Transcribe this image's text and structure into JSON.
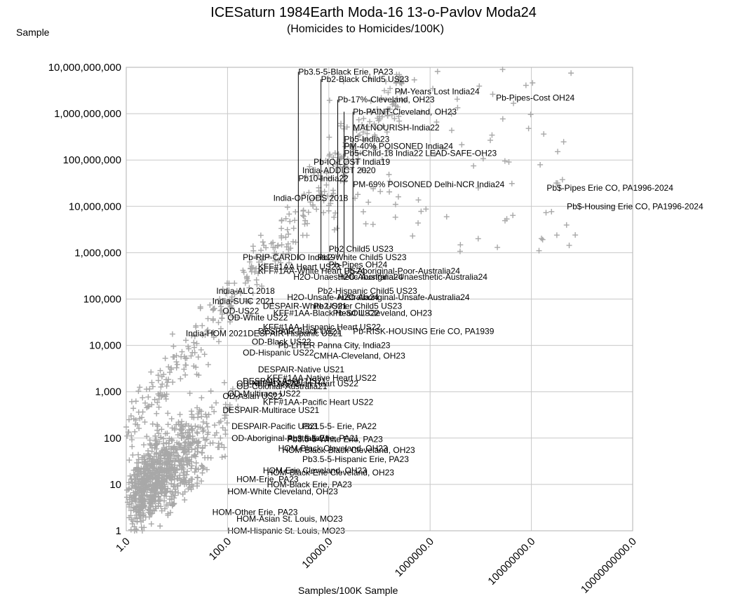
{
  "chart_data": {
    "type": "scatter",
    "title": "ICESaturn 1984Earth Moda-16 13-o-Pavlov Moda24",
    "subtitle": "(Homicides to Homicides/100K)",
    "ylabel": "Sample",
    "xlabel": "Samples/100K Sample",
    "x_scale": "log",
    "y_scale": "log",
    "xlim": [
      1,
      10000000000
    ],
    "ylim": [
      1,
      10000000000
    ],
    "grid": true,
    "marker": "plus",
    "marker_color": "#a8a8a8",
    "y_ticks": [
      "1",
      "10",
      "100",
      "1,000",
      "10,000",
      "100,000",
      "1,000,000",
      "10,000,000",
      "100,000,000",
      "1,000,000,000",
      "10,000,000,000"
    ],
    "x_ticks": [
      "1.0",
      "100.0",
      "10000.0",
      "1000000.0",
      "100000000.0",
      "10000000000.0"
    ],
    "annotations": [
      {
        "text": "Pb3.5-5-Black Erie, PA23",
        "x": 2500,
        "y": 8000000000
      },
      {
        "text": "Pb2-Black Child5 US23",
        "x": 7000,
        "y": 5500000000
      },
      {
        "text": "PM-Years Lost India24",
        "x": 200000,
        "y": 3000000000
      },
      {
        "text": "Pb-Pipes-Cost OH24",
        "x": 20000000,
        "y": 2200000000
      },
      {
        "text": "Pb-17%-Cleveland, OH23",
        "x": 15000,
        "y": 2000000000
      },
      {
        "text": "Pb-PAINT-Cleveland, OH23",
        "x": 30000,
        "y": 1100000000
      },
      {
        "text": "MALNOURISH-India22",
        "x": 30000,
        "y": 500000000
      },
      {
        "text": "Pb5-India23",
        "x": 20000,
        "y": 280000000
      },
      {
        "text": "PM-40% POISONED India24",
        "x": 20000,
        "y": 200000000
      },
      {
        "text": "Pb5-Child-18 India22",
        "x": 20000,
        "y": 140000000
      },
      {
        "text": "LEAD-SAFE-OH23",
        "x": 800000,
        "y": 140000000
      },
      {
        "text": "Pb-IQ-LOST India19",
        "x": 5000,
        "y": 90000000
      },
      {
        "text": "India-ADDICT 2020",
        "x": 3000,
        "y": 60000000
      },
      {
        "text": "Pb10-India22",
        "x": 2500,
        "y": 40000000
      },
      {
        "text": "PM-69% POISONED Delhi-NCR India24",
        "x": 30000,
        "y": 30000000
      },
      {
        "text": "Pb$-Pipes Erie CO, PA1996-2024",
        "x": 200000000,
        "y": 25000000
      },
      {
        "text": "India-OPIODS 2018",
        "x": 800,
        "y": 15000000
      },
      {
        "text": "Pb$-Housing Erie CO, PA1996-2024",
        "x": 500000000,
        "y": 10000000
      },
      {
        "text": "Pb2 Child5 US23",
        "x": 10000,
        "y": 1200000
      },
      {
        "text": "Pb-RIP-CARDIO India19",
        "x": 200,
        "y": 800000
      },
      {
        "text": "Pb2-White Child5 US23",
        "x": 6000,
        "y": 800000
      },
      {
        "text": "Pb-Pipes OH24",
        "x": 10000,
        "y": 550000
      },
      {
        "text": "KFF#1AA Heart US23",
        "x": 400,
        "y": 500000
      },
      {
        "text": "KFF#1AA-White Heart US24",
        "x": 400,
        "y": 400000
      },
      {
        "text": "Pb-Aboriginal-Poor-Australia24",
        "x": 20000,
        "y": 400000
      },
      {
        "text": "H2O-Unaesthetic-Australia24",
        "x": 2000,
        "y": 300000
      },
      {
        "text": "H2O-Aboriginal-Unaesthetic-Australia24",
        "x": 15000,
        "y": 300000
      },
      {
        "text": "India-ALC 2018",
        "x": 60,
        "y": 150000
      },
      {
        "text": "Pb2-Hispanic Child5 US23",
        "x": 6000,
        "y": 150000
      },
      {
        "text": "H2O-Unsafe-Australia24",
        "x": 1500,
        "y": 110000
      },
      {
        "text": "H2O-Aboriginal-Unsafe-Australia24",
        "x": 15000,
        "y": 110000
      },
      {
        "text": "India-SUIC 2021",
        "x": 50,
        "y": 90000
      },
      {
        "text": "DESPAIR-White US21",
        "x": 500,
        "y": 70000
      },
      {
        "text": "Pb2-Other Child5 US23",
        "x": 5000,
        "y": 70000
      },
      {
        "text": "OD-US22",
        "x": 80,
        "y": 55000
      },
      {
        "text": "KFF#1AA-Black Heart US22",
        "x": 800,
        "y": 50000
      },
      {
        "text": "Pb-SOIL-Cleveland, OH23",
        "x": 12000,
        "y": 50000
      },
      {
        "text": "OD-White US22",
        "x": 100,
        "y": 40000
      },
      {
        "text": "KFF#1AA-Hispanic Heart US22",
        "x": 500,
        "y": 25000
      },
      {
        "text": "DESPAIR-Black US21",
        "x": 400,
        "y": 20000
      },
      {
        "text": "India-HOM 2021",
        "x": 15,
        "y": 18000
      },
      {
        "text": "DESPAIR-Hispanic US21",
        "x": 250,
        "y": 18000
      },
      {
        "text": "Pb-RISK-HOUSING Erie CO, PA1939",
        "x": 30000,
        "y": 20000
      },
      {
        "text": "OD-Black US22",
        "x": 300,
        "y": 12000
      },
      {
        "text": "Pb-LITER Panna City, India23",
        "x": 1000,
        "y": 10000
      },
      {
        "text": "OD-Hispanic US22",
        "x": 200,
        "y": 7000
      },
      {
        "text": "CMHA-Cleveland, OH23",
        "x": 5000,
        "y": 6000
      },
      {
        "text": "DESPAIR-Native US21",
        "x": 400,
        "y": 3000
      },
      {
        "text": "KFF#1AA-Native Heart US22",
        "x": 600,
        "y": 2000
      },
      {
        "text": "DESPAIR-Asian US21",
        "x": 200,
        "y": 1700
      },
      {
        "text": "OD-Native US22",
        "x": 150,
        "y": 1500
      },
      {
        "text": "KFF#1AA-Asian Heart US22",
        "x": 300,
        "y": 1500
      },
      {
        "text": "OD-Colonial-Australia21",
        "x": 150,
        "y": 1300
      },
      {
        "text": "OD-Multirace US22",
        "x": 100,
        "y": 900
      },
      {
        "text": "OD-Asian US22",
        "x": 80,
        "y": 800
      },
      {
        "text": "KFF#1AA-Pacific Heart US22",
        "x": 500,
        "y": 600
      },
      {
        "text": "DESPAIR-Multirace US21",
        "x": 80,
        "y": 400
      },
      {
        "text": "DESPAIR-Pacific US21",
        "x": 120,
        "y": 180
      },
      {
        "text": "Pb3.5-5- Erie, PA22",
        "x": 3000,
        "y": 180
      },
      {
        "text": "OD-Aboriginal-Australia21",
        "x": 120,
        "y": 100
      },
      {
        "text": "Pb3.5-5-Erie, PA21",
        "x": 1500,
        "y": 100
      },
      {
        "text": "Pb3.5-5-White Erie, PA23",
        "x": 1500,
        "y": 95
      },
      {
        "text": "HOM-Black Cleveland, OH23",
        "x": 1000,
        "y": 60
      },
      {
        "text": "HOM-Black-Black Cleveland, OH23",
        "x": 1200,
        "y": 55
      },
      {
        "text": "Pb3.5-5-Hispanic Erie, PA23",
        "x": 3000,
        "y": 35
      },
      {
        "text": "HOM-Erie Cleveland, OH23",
        "x": 500,
        "y": 20
      },
      {
        "text": "HOM-Black-Erie Cleveland, OH23",
        "x": 600,
        "y": 18
      },
      {
        "text": "HOM-Erie, PA23",
        "x": 150,
        "y": 13
      },
      {
        "text": "HOM-Black Erie, PA23",
        "x": 600,
        "y": 10
      },
      {
        "text": "HOM-White Cleveland, OH23",
        "x": 100,
        "y": 7
      },
      {
        "text": "HOM-Other Erie, PA23",
        "x": 50,
        "y": 2.5
      },
      {
        "text": "HOM-Asian St. Louis, MO23",
        "x": 150,
        "y": 1.8
      },
      {
        "text": "HOM-Hispanic St. Louis, MO23",
        "x": 100,
        "y": 1
      }
    ],
    "leader_lines": [
      {
        "x": 2500,
        "y_top": 8000000000,
        "y_bottom": 700000
      },
      {
        "x": 7000,
        "y_top": 5500000000,
        "y_bottom": 700000
      },
      {
        "x": 15000,
        "y_top": 2000000000,
        "y_bottom": 800000
      },
      {
        "x": 20000,
        "y_top": 1100000000,
        "y_bottom": 700000
      },
      {
        "x": 30000,
        "y_top": 1100000000,
        "y_bottom": 1100000
      }
    ]
  }
}
